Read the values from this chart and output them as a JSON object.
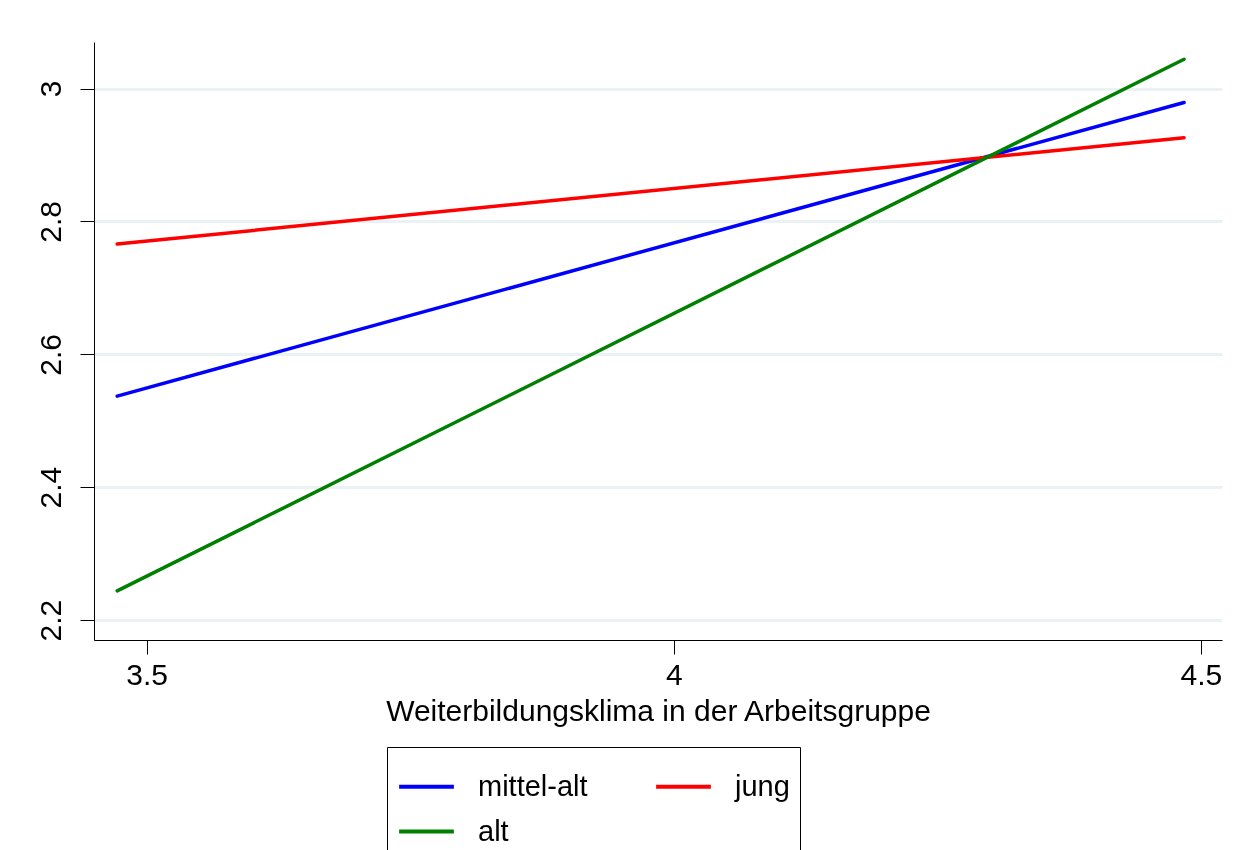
{
  "chart_data": {
    "type": "line",
    "xlabel": "Weiterbildungsklima in der Arbeitsgruppe",
    "x": [
      3.472,
      4.484
    ],
    "series": [
      {
        "name": "mittel-alt",
        "color": "#0000ff",
        "values": [
          2.537,
          2.979
        ]
      },
      {
        "name": "jung",
        "color": "#ff0000",
        "values": [
          2.766,
          2.926
        ]
      },
      {
        "name": "alt",
        "color": "#008000",
        "values": [
          2.244,
          3.044
        ]
      }
    ],
    "xlim": [
      3.45,
      4.52
    ],
    "xticks": [
      3.5,
      4,
      4.5
    ],
    "ylim": [
      2.17,
      3.07
    ],
    "yticks": [
      2.2,
      2.4,
      2.6,
      2.8,
      3
    ],
    "grid": "y",
    "legend": "bottom",
    "line_style": "solid",
    "marker": "none"
  }
}
